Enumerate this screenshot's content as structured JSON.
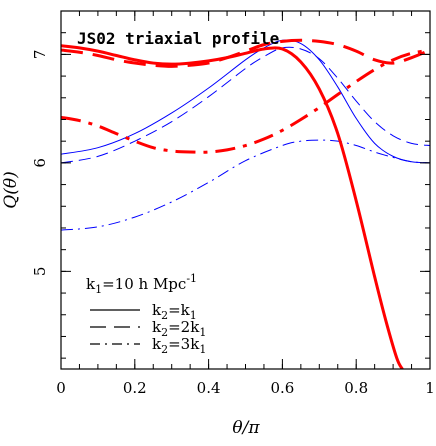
{
  "chart_data": {
    "type": "line",
    "title": "JS02 triaxial profile",
    "xlabel": "θ/π",
    "ylabel": "Q(θ)",
    "xlim": [
      0,
      1
    ],
    "ylim": [
      4.1,
      7.4
    ],
    "xticks": [
      0,
      0.2,
      0.4,
      0.6,
      0.8,
      1
    ],
    "xtick_labels": [
      "0",
      "0.2",
      "0.4",
      "0.6",
      "0.8",
      "1"
    ],
    "yticks": [
      5,
      6,
      7
    ],
    "ytick_labels": [
      "5",
      "6",
      "7"
    ],
    "minor_x_step": 0.05,
    "minor_y_step": 0.2,
    "grid": false,
    "legend": {
      "placement": "bottom-left",
      "header": "k1=10 h Mpc-1",
      "header_parts": {
        "k": "k",
        "k_sub": "1",
        "rest": "=10 h Mpc",
        "sup": "-1"
      },
      "entries": [
        {
          "style": "solid",
          "parts": {
            "a": "k",
            "a_sub": "2",
            "eq": "=",
            "b": "k",
            "b_sub": "1"
          }
        },
        {
          "style": "dashed",
          "parts": {
            "a": "k",
            "a_sub": "2",
            "eq": "=2",
            "b": "k",
            "b_sub": "1"
          }
        },
        {
          "style": "dashdot",
          "parts": {
            "a": "k",
            "a_sub": "2",
            "eq": "=3",
            "b": "k",
            "b_sub": "1"
          }
        }
      ]
    },
    "colors": {
      "red": "#ff0000",
      "blue": "#0000ff",
      "axis": "#000000"
    },
    "series": [
      {
        "color": "#0000ff",
        "style": "solid",
        "width": 1,
        "x": [
          0,
          0.1,
          0.2,
          0.3,
          0.4,
          0.5,
          0.55,
          0.6,
          0.65,
          0.7,
          0.75,
          0.8,
          0.85,
          0.9,
          0.95,
          1.0
        ],
        "y": [
          6.08,
          6.14,
          6.27,
          6.46,
          6.69,
          6.95,
          7.06,
          7.13,
          7.1,
          6.95,
          6.7,
          6.41,
          6.18,
          6.06,
          6.01,
          6.0
        ]
      },
      {
        "color": "#0000ff",
        "style": "dashed",
        "width": 1,
        "x": [
          0,
          0.1,
          0.2,
          0.3,
          0.4,
          0.5,
          0.55,
          0.6,
          0.65,
          0.7,
          0.75,
          0.8,
          0.85,
          0.9,
          0.95,
          1.0
        ],
        "y": [
          6.0,
          6.06,
          6.2,
          6.38,
          6.61,
          6.87,
          6.98,
          7.06,
          7.05,
          6.96,
          6.78,
          6.57,
          6.38,
          6.25,
          6.18,
          6.16
        ]
      },
      {
        "color": "#0000ff",
        "style": "dashdot",
        "width": 1,
        "x": [
          0,
          0.1,
          0.2,
          0.3,
          0.4,
          0.5,
          0.6,
          0.65,
          0.7,
          0.75,
          0.8,
          0.85,
          0.9,
          0.95,
          1.0
        ],
        "y": [
          5.38,
          5.41,
          5.5,
          5.64,
          5.82,
          6.02,
          6.16,
          6.2,
          6.21,
          6.2,
          6.16,
          6.1,
          6.05,
          6.01,
          6.0
        ]
      },
      {
        "color": "#ff0000",
        "style": "solid",
        "width": 3,
        "x": [
          0,
          0.05,
          0.1,
          0.15,
          0.2,
          0.25,
          0.3,
          0.35,
          0.4,
          0.45,
          0.5,
          0.55,
          0.6,
          0.65,
          0.7,
          0.75,
          0.8,
          0.85,
          0.88,
          0.91,
          0.925
        ],
        "y": [
          7.08,
          7.06,
          7.03,
          6.99,
          6.95,
          6.92,
          6.91,
          6.92,
          6.94,
          6.97,
          7.01,
          7.05,
          7.05,
          6.93,
          6.68,
          6.27,
          5.65,
          4.95,
          4.55,
          4.2,
          4.1
        ]
      },
      {
        "color": "#ff0000",
        "style": "dashed",
        "width": 3,
        "x": [
          0,
          0.05,
          0.1,
          0.15,
          0.2,
          0.25,
          0.3,
          0.35,
          0.4,
          0.45,
          0.5,
          0.55,
          0.6,
          0.65,
          0.7,
          0.75,
          0.8,
          0.85,
          0.9,
          0.95,
          1.0
        ],
        "y": [
          7.04,
          7.02,
          6.99,
          6.95,
          6.92,
          6.9,
          6.89,
          6.9,
          6.92,
          6.97,
          7.03,
          7.09,
          7.12,
          7.13,
          7.12,
          7.09,
          7.03,
          6.95,
          6.92,
          6.97,
          7.04
        ]
      },
      {
        "color": "#ff0000",
        "style": "dashdot",
        "width": 3,
        "x": [
          0,
          0.05,
          0.1,
          0.15,
          0.2,
          0.25,
          0.3,
          0.35,
          0.4,
          0.45,
          0.5,
          0.55,
          0.6,
          0.65,
          0.7,
          0.75,
          0.8,
          0.85,
          0.9,
          0.95,
          1.0
        ],
        "y": [
          6.42,
          6.39,
          6.34,
          6.27,
          6.2,
          6.14,
          6.11,
          6.1,
          6.1,
          6.12,
          6.16,
          6.22,
          6.3,
          6.4,
          6.51,
          6.63,
          6.75,
          6.86,
          6.95,
          7.01,
          7.04
        ]
      }
    ]
  }
}
